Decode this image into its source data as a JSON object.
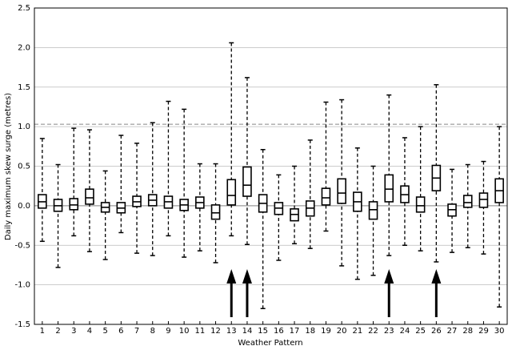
{
  "chart_data": {
    "type": "box",
    "x_label": "Weather Pattern",
    "y_label": "Daily maximum skew surge (metres)",
    "categories": [
      "1",
      "2",
      "3",
      "4",
      "5",
      "6",
      "7",
      "8",
      "9",
      "10",
      "11",
      "12",
      "13",
      "14",
      "15",
      "16",
      "17",
      "18",
      "19",
      "20",
      "21",
      "22",
      "23",
      "24",
      "25",
      "26",
      "27",
      "28",
      "29",
      "30"
    ],
    "whisker_low": [
      -0.45,
      -0.78,
      -0.38,
      -0.58,
      -0.68,
      -0.34,
      -0.6,
      -0.63,
      -0.38,
      -0.65,
      -0.57,
      -0.72,
      -0.38,
      -0.49,
      -1.3,
      -0.69,
      -0.48,
      -0.54,
      -0.32,
      -0.76,
      -0.93,
      -0.88,
      -0.63,
      -0.5,
      -0.57,
      -0.71,
      -0.59,
      -0.53,
      -0.61,
      -1.28
    ],
    "q1": [
      -0.03,
      -0.07,
      -0.05,
      0.02,
      -0.08,
      -0.09,
      -0.01,
      0.0,
      -0.03,
      -0.06,
      -0.03,
      -0.17,
      0.01,
      0.12,
      -0.08,
      -0.11,
      -0.19,
      -0.13,
      0.01,
      0.03,
      -0.07,
      -0.17,
      0.05,
      0.04,
      -0.08,
      0.19,
      -0.13,
      -0.02,
      -0.02,
      0.04
    ],
    "median": [
      0.05,
      0.0,
      0.01,
      0.1,
      -0.02,
      -0.03,
      0.05,
      0.07,
      0.05,
      0.01,
      0.04,
      -0.09,
      0.13,
      0.26,
      0.03,
      -0.03,
      -0.11,
      -0.03,
      0.1,
      0.16,
      0.05,
      -0.05,
      0.21,
      0.14,
      0.0,
      0.35,
      -0.05,
      0.04,
      0.08,
      0.19
    ],
    "q3": [
      0.14,
      0.08,
      0.09,
      0.21,
      0.04,
      0.04,
      0.12,
      0.14,
      0.12,
      0.08,
      0.11,
      0.01,
      0.33,
      0.49,
      0.14,
      0.04,
      -0.04,
      0.06,
      0.22,
      0.34,
      0.17,
      0.05,
      0.39,
      0.25,
      0.11,
      0.51,
      0.02,
      0.13,
      0.16,
      0.34
    ],
    "whisker_high": [
      0.85,
      0.52,
      0.98,
      0.96,
      0.44,
      0.89,
      0.79,
      1.05,
      1.32,
      1.22,
      0.53,
      0.53,
      2.06,
      1.62,
      0.71,
      0.39,
      0.5,
      0.83,
      1.31,
      1.34,
      0.73,
      0.5,
      1.4,
      0.86,
      1.0,
      1.53,
      0.46,
      0.52,
      0.56,
      1.0
    ],
    "color": "#000000",
    "reference_line": 1.03,
    "arrow_categories": [
      "13",
      "14",
      "23",
      "26"
    ],
    "ylim": [
      -1.5,
      2.5
    ],
    "yticks": [
      {
        "value": -1.5,
        "label": "-1.5"
      },
      {
        "value": -1.0,
        "label": "-1.0"
      },
      {
        "value": -0.5,
        "label": "-0.5"
      },
      {
        "value": 0.0,
        "label": "0.0"
      },
      {
        "value": 0.5,
        "label": "0.5"
      },
      {
        "value": 1.0,
        "label": "1.0"
      },
      {
        "value": 1.5,
        "label": "1.5"
      },
      {
        "value": 2.0,
        "label": "2.0"
      },
      {
        "value": 2.5,
        "label": "2.5"
      }
    ],
    "grid": true
  }
}
